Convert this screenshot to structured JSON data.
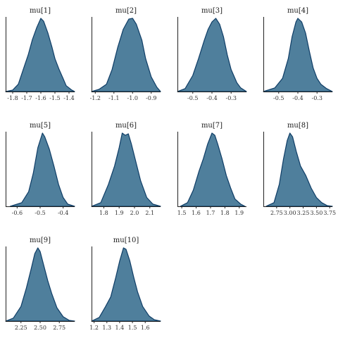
{
  "figure": {
    "fill_color": "#4f7f9c",
    "line_color": "#0f3d66"
  },
  "chart_data": [
    {
      "type": "area",
      "title": "mu[1]",
      "xlim": [
        -1.85,
        -1.36
      ],
      "ticks": [
        -1.8,
        -1.7,
        -1.6,
        -1.5,
        -1.4
      ],
      "tick_labels": [
        "-1.8",
        "-1.7",
        "-1.6",
        "-1.5",
        "-1.4"
      ],
      "x": [
        -1.85,
        -1.8,
        -1.76,
        -1.72,
        -1.69,
        -1.66,
        -1.63,
        -1.6,
        -1.58,
        -1.55,
        -1.52,
        -1.5,
        -1.47,
        -1.44,
        -1.42,
        -1.38,
        -1.36
      ],
      "y": [
        0,
        0.02,
        0.1,
        0.33,
        0.5,
        0.71,
        0.87,
        1,
        0.96,
        0.8,
        0.6,
        0.45,
        0.3,
        0.17,
        0.08,
        0.02,
        0
      ]
    },
    {
      "type": "area",
      "title": "mu[2]",
      "xlim": [
        -1.22,
        -0.85
      ],
      "ticks": [
        -1.2,
        -1.1,
        -1.0,
        -0.9
      ],
      "tick_labels": [
        "-1.2",
        "-1.1",
        "-1.0",
        "-0.9"
      ],
      "x": [
        -1.22,
        -1.18,
        -1.14,
        -1.11,
        -1.08,
        -1.05,
        -1.02,
        -1.0,
        -0.98,
        -0.95,
        -0.93,
        -0.9,
        -0.87,
        -0.85
      ],
      "y": [
        0,
        0.03,
        0.1,
        0.3,
        0.6,
        0.85,
        0.99,
        1,
        0.92,
        0.7,
        0.45,
        0.2,
        0.06,
        0
      ]
    },
    {
      "type": "area",
      "title": "mu[3]",
      "xlim": [
        -0.58,
        -0.22
      ],
      "ticks": [
        -0.5,
        -0.4,
        -0.3
      ],
      "tick_labels": [
        "-0.5",
        "-0.4",
        "-0.3"
      ],
      "x": [
        -0.58,
        -0.54,
        -0.5,
        -0.47,
        -0.44,
        -0.42,
        -0.4,
        -0.38,
        -0.36,
        -0.34,
        -0.32,
        -0.3,
        -0.27,
        -0.25,
        -0.22
      ],
      "y": [
        0,
        0.04,
        0.22,
        0.45,
        0.7,
        0.85,
        0.95,
        1,
        0.92,
        0.75,
        0.5,
        0.3,
        0.12,
        0.05,
        0
      ]
    },
    {
      "type": "area",
      "title": "mu[4]",
      "xlim": [
        -0.58,
        -0.22
      ],
      "ticks": [
        -0.5,
        -0.4,
        -0.3
      ],
      "tick_labels": [
        "-0.5",
        "-0.4",
        "-0.3"
      ],
      "x": [
        -0.58,
        -0.52,
        -0.48,
        -0.45,
        -0.43,
        -0.41,
        -0.4,
        -0.38,
        -0.36,
        -0.34,
        -0.32,
        -0.3,
        -0.28,
        -0.25,
        -0.22
      ],
      "y": [
        0,
        0.05,
        0.18,
        0.45,
        0.75,
        0.95,
        1,
        0.95,
        0.8,
        0.55,
        0.32,
        0.18,
        0.1,
        0.04,
        0
      ]
    },
    {
      "type": "area",
      "title": "mu[5]",
      "xlim": [
        -0.65,
        -0.35
      ],
      "ticks": [
        -0.6,
        -0.5,
        -0.4
      ],
      "tick_labels": [
        "-0.6",
        "-0.5",
        "-0.4"
      ],
      "x": [
        -0.63,
        -0.58,
        -0.55,
        -0.53,
        -0.51,
        -0.49,
        -0.48,
        -0.46,
        -0.44,
        -0.42,
        -0.4,
        -0.38,
        -0.35
      ],
      "y": [
        0,
        0.05,
        0.2,
        0.45,
        0.8,
        1,
        0.95,
        0.78,
        0.55,
        0.3,
        0.12,
        0.03,
        0
      ]
    },
    {
      "type": "area",
      "title": "mu[6]",
      "xlim": [
        1.72,
        2.17
      ],
      "ticks": [
        1.8,
        1.9,
        2.0,
        2.1
      ],
      "tick_labels": [
        "1.8",
        "1.9",
        "2.0",
        "2.1"
      ],
      "x": [
        1.72,
        1.78,
        1.83,
        1.87,
        1.9,
        1.92,
        1.94,
        1.96,
        1.98,
        2.01,
        2.04,
        2.08,
        2.12,
        2.17
      ],
      "y": [
        0,
        0.05,
        0.3,
        0.55,
        0.8,
        1,
        0.97,
        0.99,
        0.85,
        0.6,
        0.35,
        0.12,
        0.03,
        0
      ]
    },
    {
      "type": "area",
      "title": "mu[7]",
      "xlim": [
        1.47,
        1.95
      ],
      "ticks": [
        1.5,
        1.6,
        1.7,
        1.8,
        1.9
      ],
      "tick_labels": [
        "1.5",
        "1.6",
        "1.7",
        "1.8",
        "1.9"
      ],
      "x": [
        1.49,
        1.54,
        1.58,
        1.62,
        1.65,
        1.68,
        1.71,
        1.73,
        1.75,
        1.78,
        1.81,
        1.84,
        1.87,
        1.91,
        1.94
      ],
      "y": [
        0,
        0.05,
        0.22,
        0.48,
        0.65,
        0.85,
        1,
        0.97,
        0.85,
        0.65,
        0.42,
        0.25,
        0.1,
        0.03,
        0
      ]
    },
    {
      "type": "area",
      "title": "mu[8]",
      "xlim": [
        2.5,
        3.8
      ],
      "ticks": [
        2.75,
        3.0,
        3.25,
        3.5,
        3.75
      ],
      "tick_labels": [
        "2.75",
        "3.00",
        "3.25",
        "3.50",
        "3.75"
      ],
      "x": [
        2.55,
        2.7,
        2.8,
        2.88,
        2.95,
        3.0,
        3.05,
        3.12,
        3.2,
        3.3,
        3.4,
        3.5,
        3.6,
        3.7,
        3.8
      ],
      "y": [
        0,
        0.05,
        0.3,
        0.65,
        0.9,
        1,
        0.95,
        0.75,
        0.55,
        0.42,
        0.25,
        0.12,
        0.05,
        0.01,
        0
      ]
    },
    {
      "type": "area",
      "title": "mu[9]",
      "xlim": [
        2.05,
        2.95
      ],
      "ticks": [
        2.25,
        2.5,
        2.75
      ],
      "tick_labels": [
        "2.25",
        "2.50",
        "2.75"
      ],
      "x": [
        2.05,
        2.15,
        2.25,
        2.32,
        2.38,
        2.43,
        2.47,
        2.5,
        2.55,
        2.6,
        2.65,
        2.72,
        2.8,
        2.88,
        2.95
      ],
      "y": [
        0,
        0.04,
        0.2,
        0.45,
        0.7,
        0.92,
        1,
        0.95,
        0.75,
        0.55,
        0.38,
        0.18,
        0.06,
        0.01,
        0
      ]
    },
    {
      "type": "area",
      "title": "mu[10]",
      "xlim": [
        1.18,
        1.72
      ],
      "ticks": [
        1.2,
        1.3,
        1.4,
        1.5,
        1.6
      ],
      "tick_labels": [
        "1.2",
        "1.3",
        "1.4",
        "1.5",
        "1.6"
      ],
      "x": [
        1.18,
        1.24,
        1.29,
        1.33,
        1.37,
        1.4,
        1.43,
        1.45,
        1.48,
        1.51,
        1.54,
        1.58,
        1.63,
        1.67,
        1.72
      ],
      "y": [
        0,
        0.05,
        0.2,
        0.33,
        0.6,
        0.82,
        1,
        0.98,
        0.82,
        0.6,
        0.4,
        0.2,
        0.07,
        0.02,
        0
      ]
    }
  ]
}
